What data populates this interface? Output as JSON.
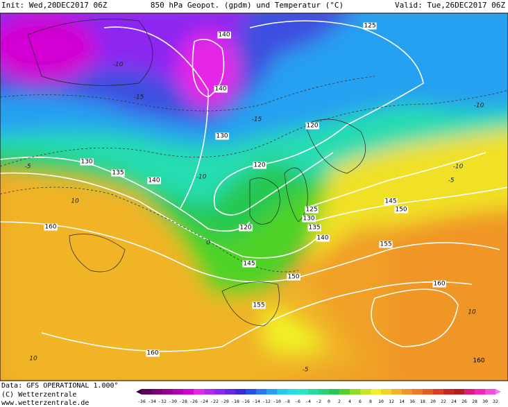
{
  "header": {
    "init": "Init: Wed,20DEC2017 06Z",
    "title": "850 hPa Geopot. (gpdm) und Temperatur (°C)",
    "valid": "Valid: Tue,26DEC2017 06Z"
  },
  "map": {
    "geopotential_labels": [
      "140",
      "140",
      "130",
      "130",
      "135",
      "140",
      "125",
      "120",
      "120",
      "120",
      "125",
      "130",
      "135",
      "140",
      "145",
      "150",
      "155",
      "160",
      "160",
      "145",
      "150",
      "155",
      "160",
      "160"
    ],
    "temperature_labels": [
      "-15",
      "-15",
      "-10",
      "-10",
      "-5",
      "-10",
      "0",
      "-5",
      "10",
      "-10",
      "10",
      "-5",
      "10"
    ]
  },
  "footer": {
    "data": "Data: GFS OPERATIONAL 1.000°",
    "copyright": "(C) Wetterzentrale",
    "url": "www.wetterzentrale.de"
  },
  "colorbar": {
    "labels": [
      "-36",
      "-34",
      "-32",
      "-30",
      "-28",
      "-26",
      "-24",
      "-22",
      "-20",
      "-18",
      "-16",
      "-14",
      "-12",
      "-10",
      "-8",
      "-6",
      "-4",
      "-2",
      "0",
      "2",
      "4",
      "6",
      "8",
      "10",
      "12",
      "14",
      "16",
      "18",
      "20",
      "22",
      "24",
      "26",
      "28",
      "30",
      "32"
    ],
    "colors": [
      "#3c003c",
      "#5a005a",
      "#780078",
      "#960096",
      "#b400b4",
      "#d200d2",
      "#e628e6",
      "#b428f0",
      "#8c28f0",
      "#6428e6",
      "#3c28dc",
      "#2850e6",
      "#2878f0",
      "#28a0f0",
      "#28c8f0",
      "#28dce6",
      "#28e6c8",
      "#28dca0",
      "#28d278",
      "#28c850",
      "#50d228",
      "#8cdc28",
      "#c8e628",
      "#f0f028",
      "#f0d228",
      "#f0b428",
      "#f09628",
      "#f07828",
      "#e65a28",
      "#dc3c28",
      "#c82828",
      "#b41e1e",
      "#dc1e78",
      "#f028b4",
      "#f050dc",
      "#f078f0"
    ]
  }
}
